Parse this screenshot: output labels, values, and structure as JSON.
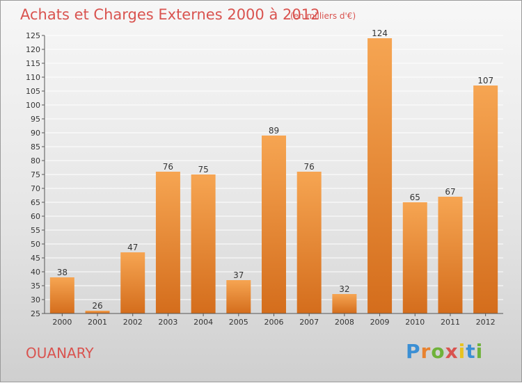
{
  "chart_data": {
    "type": "bar",
    "title": "Achats et Charges Externes 2000 à 2012",
    "subtitle": "(en milliers d'€)",
    "categories": [
      "2000",
      "2001",
      "2002",
      "2003",
      "2004",
      "2005",
      "2006",
      "2007",
      "2008",
      "2009",
      "2010",
      "2011",
      "2012"
    ],
    "values": [
      38,
      26,
      47,
      76,
      75,
      37,
      89,
      76,
      32,
      124,
      65,
      67,
      107
    ],
    "ylim": [
      25,
      125
    ],
    "yticks": [
      "25",
      "30",
      "35",
      "40",
      "45",
      "50",
      "55",
      "60",
      "65",
      "70",
      "75",
      "80",
      "85",
      "90",
      "95",
      "100",
      "105",
      "110",
      "115",
      "120",
      "125"
    ],
    "grid": true,
    "bar_color": "#e8822f",
    "title_color": "#d9534f"
  },
  "location": "OUANARY",
  "logo": {
    "letters": [
      "P",
      "r",
      "o",
      "x",
      "i",
      "t",
      "i"
    ],
    "colors": [
      "#3b8fd4",
      "#e8822f",
      "#6fb23a",
      "#d9534f",
      "#e8c21f",
      "#3b8fd4",
      "#6fb23a"
    ]
  }
}
